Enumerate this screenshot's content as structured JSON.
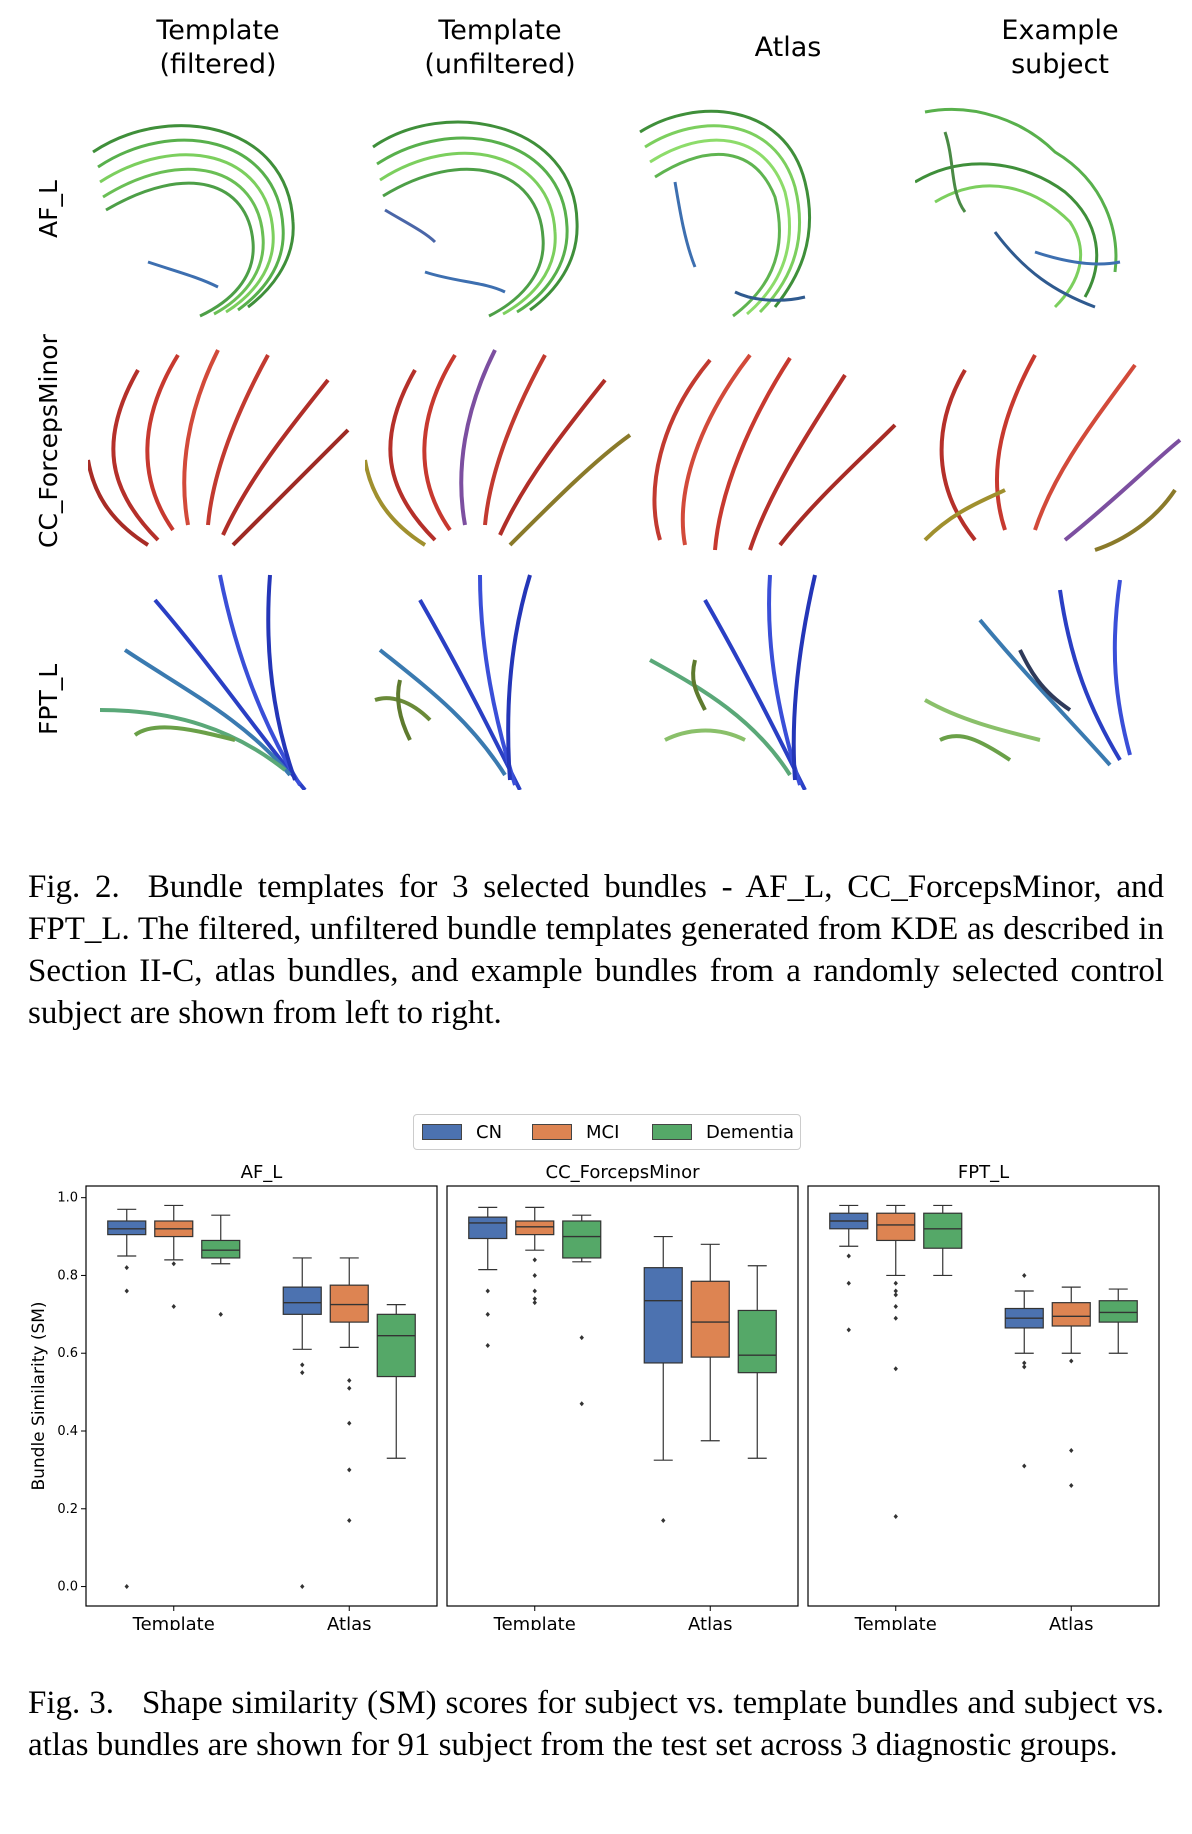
{
  "figure2": {
    "columns": [
      "Template\n(filtered)",
      "Template\n(unfiltered)",
      "Atlas",
      "Example\nsubject"
    ],
    "rows": [
      "AF_L",
      "CC_ForcepsMinor",
      "FPT_L"
    ],
    "caption_label": "Fig. 2.",
    "caption_text": "Bundle templates for 3 selected bundles - AF_L, CC_ForcepsMinor, and FPT_L. The filtered, unfiltered bundle templates generated from KDE as described in Section II-C, atlas bundles, and example bundles from a randomly selected control subject are shown from left to right."
  },
  "figure3": {
    "caption_label": "Fig. 3.",
    "caption_text": "Shape similarity (SM) scores for subject vs. template bundles and subject vs. atlas bundles are shown for 91 subject from the test set across 3 diagnostic groups."
  },
  "legend": [
    {
      "name": "CN",
      "color": "#4c72b0"
    },
    {
      "name": "MCI",
      "color": "#dd8452"
    },
    {
      "name": "Dementia",
      "color": "#55a868"
    }
  ],
  "chart_data": {
    "type": "box",
    "ylabel": "Bundle Similarity (SM)",
    "ylim": [
      -0.05,
      1.03
    ],
    "yticks": [
      0.0,
      0.2,
      0.4,
      0.6,
      0.8,
      1.0
    ],
    "categories": [
      "Template",
      "Atlas"
    ],
    "panels": [
      {
        "title": "AF_L",
        "groups": [
          {
            "category": "Template",
            "series": "CN",
            "whisker_low": 0.85,
            "q1": 0.905,
            "median": 0.92,
            "q3": 0.94,
            "whisker_high": 0.97,
            "outliers": [
              0.82,
              0.76,
              0.0
            ]
          },
          {
            "category": "Template",
            "series": "MCI",
            "whisker_low": 0.84,
            "q1": 0.9,
            "median": 0.92,
            "q3": 0.94,
            "whisker_high": 0.98,
            "outliers": [
              0.83,
              0.72
            ]
          },
          {
            "category": "Template",
            "series": "Dementia",
            "whisker_low": 0.83,
            "q1": 0.845,
            "median": 0.865,
            "q3": 0.89,
            "whisker_high": 0.955,
            "outliers": [
              0.7
            ]
          },
          {
            "category": "Atlas",
            "series": "CN",
            "whisker_low": 0.61,
            "q1": 0.7,
            "median": 0.73,
            "q3": 0.77,
            "whisker_high": 0.845,
            "outliers": [
              0.57,
              0.55,
              0.0
            ]
          },
          {
            "category": "Atlas",
            "series": "MCI",
            "whisker_low": 0.615,
            "q1": 0.68,
            "median": 0.725,
            "q3": 0.775,
            "whisker_high": 0.845,
            "outliers": [
              0.53,
              0.51,
              0.42,
              0.3,
              0.17
            ]
          },
          {
            "category": "Atlas",
            "series": "Dementia",
            "whisker_low": 0.33,
            "q1": 0.54,
            "median": 0.645,
            "q3": 0.7,
            "whisker_high": 0.725,
            "outliers": []
          }
        ]
      },
      {
        "title": "CC_ForcepsMinor",
        "groups": [
          {
            "category": "Template",
            "series": "CN",
            "whisker_low": 0.815,
            "q1": 0.895,
            "median": 0.935,
            "q3": 0.95,
            "whisker_high": 0.975,
            "outliers": [
              0.76,
              0.7,
              0.62
            ]
          },
          {
            "category": "Template",
            "series": "MCI",
            "whisker_low": 0.865,
            "q1": 0.905,
            "median": 0.925,
            "q3": 0.94,
            "whisker_high": 0.975,
            "outliers": [
              0.84,
              0.8,
              0.76,
              0.74,
              0.73
            ]
          },
          {
            "category": "Template",
            "series": "Dementia",
            "whisker_low": 0.835,
            "q1": 0.845,
            "median": 0.9,
            "q3": 0.94,
            "whisker_high": 0.955,
            "outliers": [
              0.64,
              0.47
            ]
          },
          {
            "category": "Atlas",
            "series": "CN",
            "whisker_low": 0.325,
            "q1": 0.575,
            "median": 0.735,
            "q3": 0.82,
            "whisker_high": 0.9,
            "outliers": [
              0.17
            ]
          },
          {
            "category": "Atlas",
            "series": "MCI",
            "whisker_low": 0.375,
            "q1": 0.59,
            "median": 0.68,
            "q3": 0.785,
            "whisker_high": 0.88,
            "outliers": []
          },
          {
            "category": "Atlas",
            "series": "Dementia",
            "whisker_low": 0.33,
            "q1": 0.55,
            "median": 0.595,
            "q3": 0.71,
            "whisker_high": 0.825,
            "outliers": []
          }
        ]
      },
      {
        "title": "FPT_L",
        "groups": [
          {
            "category": "Template",
            "series": "CN",
            "whisker_low": 0.875,
            "q1": 0.92,
            "median": 0.94,
            "q3": 0.96,
            "whisker_high": 0.98,
            "outliers": [
              0.85,
              0.78,
              0.66
            ]
          },
          {
            "category": "Template",
            "series": "MCI",
            "whisker_low": 0.8,
            "q1": 0.89,
            "median": 0.93,
            "q3": 0.96,
            "whisker_high": 0.98,
            "outliers": [
              0.78,
              0.76,
              0.75,
              0.72,
              0.69,
              0.56,
              0.18
            ]
          },
          {
            "category": "Template",
            "series": "Dementia",
            "whisker_low": 0.8,
            "q1": 0.87,
            "median": 0.92,
            "q3": 0.96,
            "whisker_high": 0.98,
            "outliers": []
          },
          {
            "category": "Atlas",
            "series": "CN",
            "whisker_low": 0.6,
            "q1": 0.665,
            "median": 0.69,
            "q3": 0.715,
            "whisker_high": 0.76,
            "outliers": [
              0.8,
              0.575,
              0.565,
              0.31
            ]
          },
          {
            "category": "Atlas",
            "series": "MCI",
            "whisker_low": 0.6,
            "q1": 0.67,
            "median": 0.695,
            "q3": 0.73,
            "whisker_high": 0.77,
            "outliers": [
              0.58,
              0.35,
              0.26
            ]
          },
          {
            "category": "Atlas",
            "series": "Dementia",
            "whisker_low": 0.6,
            "q1": 0.68,
            "median": 0.705,
            "q3": 0.735,
            "whisker_high": 0.765,
            "outliers": []
          }
        ]
      }
    ]
  }
}
